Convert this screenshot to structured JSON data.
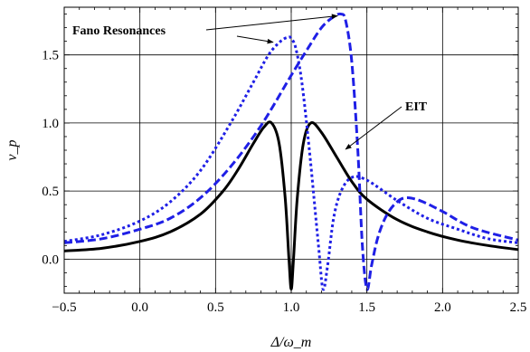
{
  "chart_data": {
    "type": "line",
    "title": "",
    "xlabel": "Δ/ω_m",
    "ylabel": "ν_p",
    "xlim": [
      -0.5,
      2.5
    ],
    "ylim": [
      -0.25,
      1.85
    ],
    "xticks": [
      -0.5,
      0.0,
      0.5,
      1.0,
      1.5,
      2.0,
      2.5
    ],
    "yticks": [
      0.0,
      0.5,
      1.0,
      1.5
    ],
    "xtick_labels": [
      "−0.5",
      "0.0",
      "0.5",
      "1.0",
      "1.5",
      "2.0",
      "2.5"
    ],
    "ytick_labels": [
      "0.0",
      "0.5",
      "1.0",
      "1.5"
    ],
    "grid": true,
    "legend": "none",
    "series": [
      {
        "style": "solid",
        "color": "#000000",
        "x": [
          -0.5,
          -0.25,
          0.0,
          0.2,
          0.4,
          0.55,
          0.65,
          0.75,
          0.82,
          0.87,
          0.92,
          0.96,
          0.985,
          1.0,
          1.015,
          1.04,
          1.08,
          1.13,
          1.2,
          1.3,
          1.4,
          1.5,
          1.7,
          1.9,
          2.1,
          2.3,
          2.5
        ],
        "y": [
          0.06,
          0.08,
          0.13,
          0.2,
          0.33,
          0.5,
          0.66,
          0.85,
          0.97,
          1.0,
          0.85,
          0.45,
          0.0,
          -0.22,
          0.0,
          0.45,
          0.85,
          1.0,
          0.93,
          0.75,
          0.57,
          0.44,
          0.29,
          0.2,
          0.14,
          0.1,
          0.07
        ]
      },
      {
        "style": "dashed",
        "color": "#1f1fe6",
        "x": [
          -0.5,
          -0.25,
          0.0,
          0.2,
          0.4,
          0.6,
          0.8,
          1.0,
          1.1,
          1.2,
          1.28,
          1.33,
          1.36,
          1.4,
          1.44,
          1.47,
          1.5,
          1.53,
          1.57,
          1.62,
          1.68,
          1.75,
          1.85,
          2.0,
          2.2,
          2.5
        ],
        "y": [
          0.12,
          0.15,
          0.22,
          0.3,
          0.45,
          0.68,
          0.98,
          1.35,
          1.53,
          1.7,
          1.78,
          1.8,
          1.75,
          1.45,
          0.8,
          0.1,
          -0.22,
          -0.05,
          0.15,
          0.3,
          0.4,
          0.45,
          0.43,
          0.35,
          0.23,
          0.14
        ]
      },
      {
        "style": "dotted",
        "color": "#1f1fe6",
        "x": [
          -0.5,
          -0.25,
          0.0,
          0.2,
          0.4,
          0.6,
          0.75,
          0.85,
          0.93,
          0.98,
          1.0,
          1.03,
          1.07,
          1.12,
          1.18,
          1.21,
          1.24,
          1.28,
          1.33,
          1.4,
          1.5,
          1.7,
          1.9,
          2.1,
          2.3,
          2.5
        ],
        "y": [
          0.13,
          0.18,
          0.28,
          0.42,
          0.65,
          1.0,
          1.3,
          1.5,
          1.6,
          1.63,
          1.62,
          1.55,
          1.3,
          0.8,
          0.1,
          -0.22,
          -0.05,
          0.3,
          0.5,
          0.6,
          0.58,
          0.43,
          0.3,
          0.22,
          0.15,
          0.12
        ]
      }
    ],
    "annotations": [
      {
        "text": "Fano Resonances",
        "arrow_to": [
          [
            1.33,
            1.8
          ],
          [
            1.0,
            1.62
          ]
        ]
      },
      {
        "text": "EIT",
        "arrow_to": [
          [
            1.18,
            0.78
          ]
        ]
      }
    ]
  }
}
